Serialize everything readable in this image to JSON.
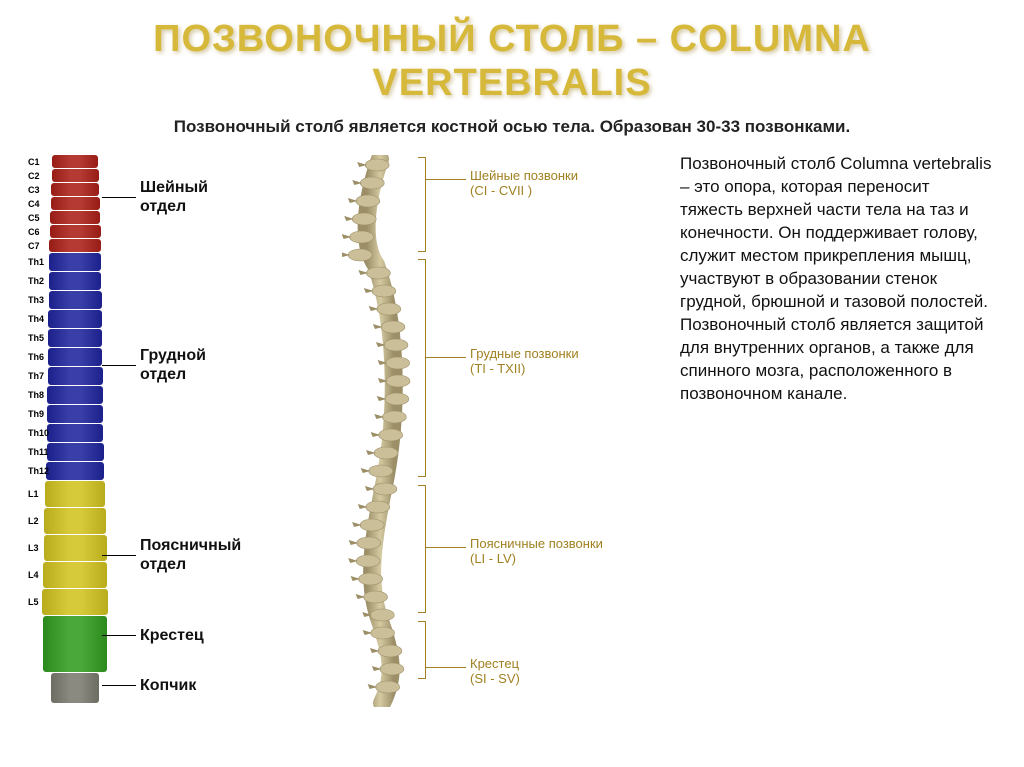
{
  "title": "ПОЗВОНОЧНЫЙ СТОЛБ – COLUMNA VERTEBRALIS",
  "subtitle": "Позвоночный столб является костной осью тела. Образован 30-33 позвонками.",
  "description": "Позвоночный столб Columna vertebralis – это опора, которая переносит тяжесть верхней части тела на таз и конечности. Он поддерживает голову, служит местом прикрепления мышц, участвуют в образовании стенок грудной, брюшной и тазовой полостей. Позвоночный столб является защитой для внутренних органов, а также для спинного мозга, расположенного в позвоночном канале.",
  "colors": {
    "cervical": "#b53a34",
    "thoracic": "#3a3ea8",
    "lumbar": "#d6c93a",
    "sacrum": "#4aa83a",
    "coccyx": "#8a8a80",
    "bone": "#cbbf99",
    "bone_dark": "#9c8f68",
    "label_accent": "#a08020"
  },
  "cervical_vertebrae": [
    "C1",
    "C2",
    "C3",
    "C4",
    "C5",
    "C6",
    "C7"
  ],
  "thoracic_vertebrae": [
    "Th1",
    "Th2",
    "Th3",
    "Th4",
    "Th5",
    "Th6",
    "Th7",
    "Th8",
    "Th9",
    "Th10",
    "Th11",
    "Th12"
  ],
  "lumbar_vertebrae": [
    "L1",
    "L2",
    "L3",
    "L4",
    "L5"
  ],
  "sections_left": {
    "cervical": "Шейный\nотдел",
    "thoracic": "Грудной\nотдел",
    "lumbar": "Поясничный\nотдел",
    "sacrum": "Крестец",
    "coccyx": "Копчик"
  },
  "sections_right": {
    "cervical": {
      "name": "Шейные позвонки",
      "range": "(CI - CVII )"
    },
    "thoracic": {
      "name": "Грудные позвонки",
      "range": "(TI - TXII)"
    },
    "lumbar": {
      "name": "Поясничные позвонки",
      "range": "(LI - LV)"
    },
    "sacrum": {
      "name": "Крестец",
      "range": "(SI - SV)"
    }
  },
  "layout": {
    "cervical_h": 13,
    "thoracic_h": 18,
    "lumbar_h": 26,
    "sacrum_h": 56,
    "coccyx_h": 30
  }
}
